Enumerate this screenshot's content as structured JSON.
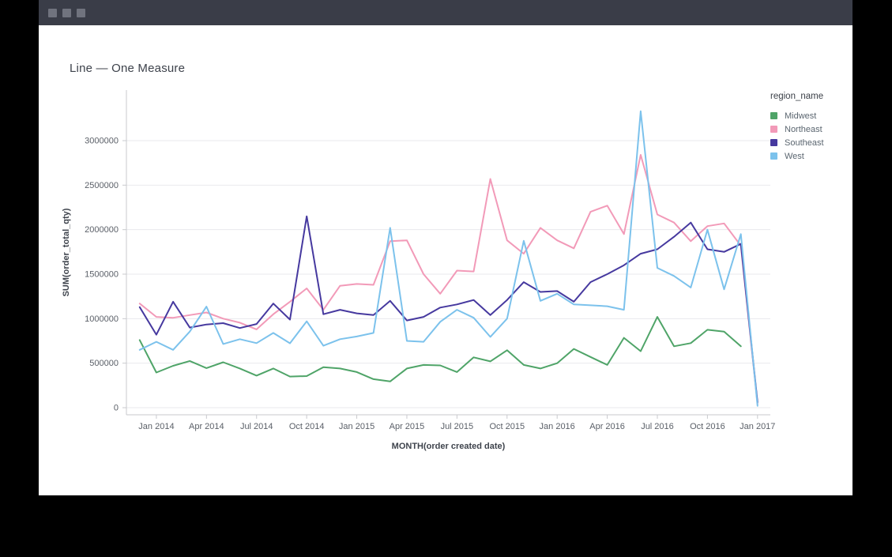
{
  "window": {
    "titlebar_buttons": [
      "window-button-1",
      "window-button-2",
      "window-button-3"
    ],
    "titlebar_color": "#3a3d48",
    "button_color": "#70737e"
  },
  "chart_data": {
    "type": "line",
    "title": "Line — One Measure",
    "xlabel": "MONTH(order created date)",
    "ylabel": "SUM(order_total_qty)",
    "legend_title": "region_name",
    "legend_position": "right",
    "grid": true,
    "ylim": [
      0,
      3500000
    ],
    "y_ticks": [
      0,
      500000,
      1000000,
      1500000,
      2000000,
      2500000,
      3000000
    ],
    "x": [
      "Dec 2013",
      "Jan 2014",
      "Feb 2014",
      "Mar 2014",
      "Apr 2014",
      "May 2014",
      "Jun 2014",
      "Jul 2014",
      "Aug 2014",
      "Sep 2014",
      "Oct 2014",
      "Nov 2014",
      "Dec 2014",
      "Jan 2015",
      "Feb 2015",
      "Mar 2015",
      "Apr 2015",
      "May 2015",
      "Jun 2015",
      "Jul 2015",
      "Aug 2015",
      "Sep 2015",
      "Oct 2015",
      "Nov 2015",
      "Dec 2015",
      "Jan 2016",
      "Feb 2016",
      "Mar 2016",
      "Apr 2016",
      "May 2016",
      "Jun 2016",
      "Jul 2016",
      "Aug 2016",
      "Sep 2016",
      "Oct 2016",
      "Nov 2016",
      "Dec 2016",
      "Jan 2017"
    ],
    "x_tick_every": 3,
    "x_tick_start_index": 1,
    "series": [
      {
        "name": "Midwest",
        "color": "#4fa468",
        "values": [
          760000,
          395000,
          470000,
          525000,
          445000,
          510000,
          440000,
          360000,
          440000,
          350000,
          355000,
          455000,
          440000,
          400000,
          320000,
          295000,
          440000,
          480000,
          475000,
          400000,
          565000,
          520000,
          645000,
          480000,
          440000,
          500000,
          660000,
          570000,
          480000,
          785000,
          635000,
          1020000,
          690000,
          725000,
          875000,
          855000,
          690000,
          null
        ]
      },
      {
        "name": "Northeast",
        "color": "#f29ab8",
        "values": [
          1170000,
          1020000,
          1010000,
          1040000,
          1070000,
          1000000,
          955000,
          880000,
          1050000,
          1190000,
          1340000,
          1100000,
          1370000,
          1390000,
          1380000,
          1870000,
          1880000,
          1500000,
          1280000,
          1540000,
          1530000,
          2570000,
          1880000,
          1730000,
          2020000,
          1880000,
          1790000,
          2200000,
          2270000,
          1950000,
          2840000,
          2170000,
          2080000,
          1870000,
          2040000,
          2070000,
          1820000,
          40000
        ]
      },
      {
        "name": "Southeast",
        "color": "#46399f",
        "values": [
          1130000,
          820000,
          1190000,
          900000,
          935000,
          950000,
          895000,
          940000,
          1170000,
          990000,
          2150000,
          1050000,
          1100000,
          1060000,
          1040000,
          1200000,
          980000,
          1020000,
          1125000,
          1160000,
          1210000,
          1040000,
          1210000,
          1410000,
          1300000,
          1310000,
          1190000,
          1410000,
          1500000,
          1600000,
          1730000,
          1780000,
          1920000,
          2080000,
          1780000,
          1750000,
          1840000,
          60000
        ]
      },
      {
        "name": "West",
        "color": "#7cc2ec",
        "values": [
          650000,
          740000,
          650000,
          855000,
          1135000,
          715000,
          770000,
          725000,
          840000,
          723000,
          970000,
          696000,
          770000,
          800000,
          840000,
          2020000,
          750000,
          740000,
          965000,
          1100000,
          1010000,
          795000,
          1000000,
          1875000,
          1200000,
          1280000,
          1160000,
          1150000,
          1140000,
          1100000,
          3330000,
          1570000,
          1480000,
          1350000,
          2000000,
          1330000,
          1950000,
          20000
        ]
      }
    ],
    "style": {
      "grid_color": "#e9e9ed",
      "axis_color": "#c9cace",
      "tick_label_color": "#5b6068",
      "axis_title_color": "#3e434c",
      "stroke_width": 2
    }
  }
}
